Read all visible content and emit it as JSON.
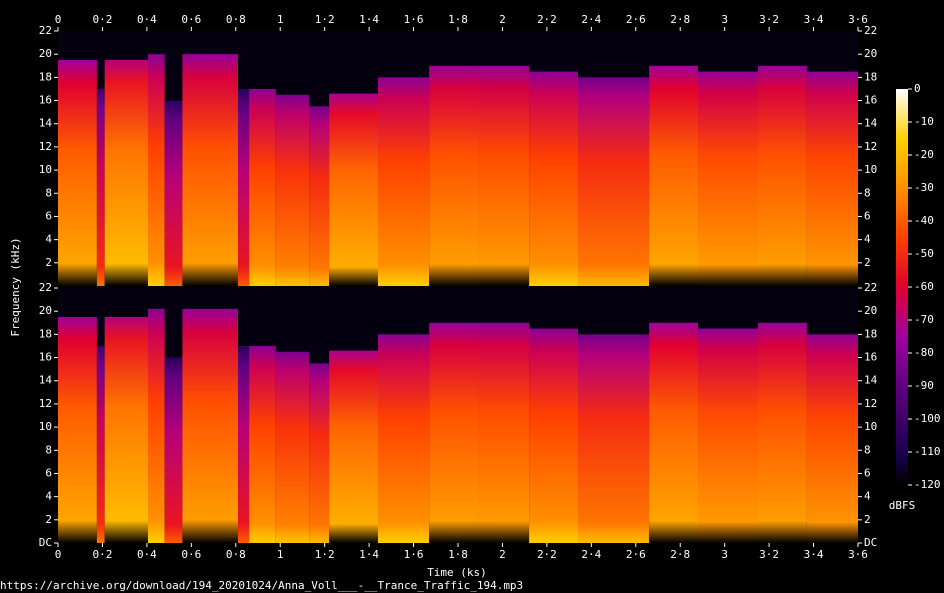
{
  "chart_data": {
    "type": "spectrogram",
    "x_label": "Time (ks)",
    "y_label": "Frequency (kHz)",
    "xlim": [
      0,
      3.6
    ],
    "xticks": [
      0,
      {
        "value": 0.2,
        "label": "0·2"
      },
      {
        "value": 0.4,
        "label": "0·4"
      },
      {
        "value": 0.6,
        "label": "0·6"
      },
      {
        "value": 0.8,
        "label": "0·8"
      },
      1,
      {
        "value": 1.2,
        "label": "1·2"
      },
      {
        "value": 1.4,
        "label": "1·4"
      },
      {
        "value": 1.6,
        "label": "1·6"
      },
      {
        "value": 1.8,
        "label": "1·8"
      },
      2,
      {
        "value": 2.2,
        "label": "2·2"
      },
      {
        "value": 2.4,
        "label": "2·4"
      },
      {
        "value": 2.6,
        "label": "2·6"
      },
      {
        "value": 2.8,
        "label": "2·8"
      },
      3,
      {
        "value": 3.2,
        "label": "3·2"
      },
      {
        "value": 3.4,
        "label": "3·4"
      },
      {
        "value": 3.6,
        "label": "3·6"
      }
    ],
    "x": [
      0,
      0.175,
      0.21,
      0.405,
      0.48,
      0.56,
      0.81,
      0.86,
      0.98,
      1.13,
      1.22,
      1.44,
      1.67,
      1.89,
      2.12,
      2.34,
      2.66,
      2.88,
      3.15,
      3.37
    ],
    "channels": [
      {
        "ylim": [
          0,
          22
        ],
        "yticks": [
          2,
          4,
          6,
          8,
          10,
          12,
          14,
          16,
          18,
          20,
          22
        ],
        "cutoff_khz": [
          19.5,
          17,
          19.5,
          20,
          16,
          20,
          17,
          17,
          16.5,
          15.5,
          16.6,
          18,
          19,
          19,
          18.5,
          18,
          19,
          18.5,
          19,
          18.5
        ],
        "level_dbfs": [
          -30,
          -55,
          -25,
          -35,
          -60,
          -32,
          -60,
          -35,
          -38,
          -40,
          -28,
          -35,
          -32,
          -33,
          -35,
          -40,
          -30,
          -33,
          -32,
          -34
        ]
      },
      {
        "ylim": [
          0,
          22
        ],
        "yticks": [
          {
            "value": 0,
            "label": "DC"
          },
          2,
          4,
          6,
          8,
          10,
          12,
          14,
          16,
          18,
          20,
          22
        ],
        "cutoff_khz": [
          19.5,
          17,
          19.5,
          20.2,
          16,
          20.2,
          17,
          17,
          16.5,
          15.5,
          16.6,
          18,
          19,
          19,
          18.5,
          18,
          19,
          18.5,
          19,
          18
        ],
        "level_dbfs": [
          -30,
          -55,
          -25,
          -35,
          -60,
          -32,
          -60,
          -35,
          -38,
          -40,
          -28,
          -35,
          -32,
          -33,
          -35,
          -40,
          -30,
          -33,
          -32,
          -34
        ]
      }
    ],
    "colorbar": {
      "label": "dBFS",
      "lim": [
        -120,
        0
      ],
      "ticks": [
        -120,
        -110,
        -100,
        -90,
        -80,
        -70,
        -60,
        -50,
        -40,
        -30,
        -20,
        -10,
        0
      ]
    }
  },
  "source_url": "https://archive.org/download/194_20201024/Anna_Voll___-__Trance_Traffic_194.mp3"
}
